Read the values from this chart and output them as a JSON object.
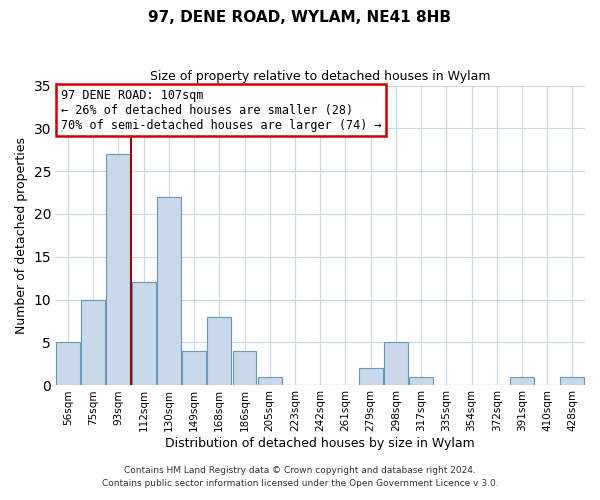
{
  "title": "97, DENE ROAD, WYLAM, NE41 8HB",
  "subtitle": "Size of property relative to detached houses in Wylam",
  "xlabel": "Distribution of detached houses by size in Wylam",
  "ylabel": "Number of detached properties",
  "bar_labels": [
    "56sqm",
    "75sqm",
    "93sqm",
    "112sqm",
    "130sqm",
    "149sqm",
    "168sqm",
    "186sqm",
    "205sqm",
    "223sqm",
    "242sqm",
    "261sqm",
    "279sqm",
    "298sqm",
    "317sqm",
    "335sqm",
    "354sqm",
    "372sqm",
    "391sqm",
    "410sqm",
    "428sqm"
  ],
  "bar_values": [
    5,
    10,
    27,
    12,
    22,
    4,
    8,
    4,
    1,
    0,
    0,
    0,
    2,
    5,
    1,
    0,
    0,
    0,
    1,
    0,
    1
  ],
  "bar_color": "#c9d9ea",
  "bar_edge_color": "#6699bb",
  "ylim": [
    0,
    35
  ],
  "yticks": [
    0,
    5,
    10,
    15,
    20,
    25,
    30,
    35
  ],
  "property_line_color": "#990000",
  "annotation_title": "97 DENE ROAD: 107sqm",
  "annotation_line1": "← 26% of detached houses are smaller (28)",
  "annotation_line2": "70% of semi-detached houses are larger (74) →",
  "annotation_box_color": "#ffffff",
  "annotation_box_edge": "#cc0000",
  "footer1": "Contains HM Land Registry data © Crown copyright and database right 2024.",
  "footer2": "Contains public sector information licensed under the Open Government Licence v 3.0.",
  "background_color": "#ffffff",
  "grid_color": "#c8d8e8"
}
